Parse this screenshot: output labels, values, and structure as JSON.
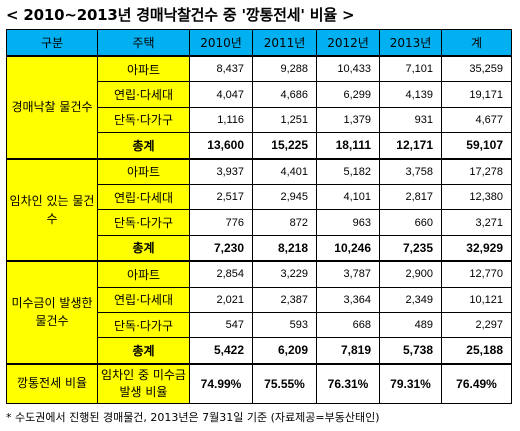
{
  "title": "< 2010~2013년 경매낙찰건수 중 '깡통전세' 비율 >",
  "headers": [
    "구분",
    "주택",
    "2010년",
    "2011년",
    "2012년",
    "2013년",
    "계"
  ],
  "sections": [
    {
      "label": "경매낙찰 물건수",
      "rows": [
        {
          "type": "아파트",
          "values": [
            "8,437",
            "9,288",
            "10,433",
            "7,101",
            "35,259"
          ]
        },
        {
          "type": "연립·다세대",
          "values": [
            "4,047",
            "4,686",
            "6,299",
            "4,139",
            "19,171"
          ]
        },
        {
          "type": "단독·다가구",
          "values": [
            "1,116",
            "1,251",
            "1,379",
            "931",
            "4,677"
          ]
        },
        {
          "type": "총계",
          "values": [
            "13,600",
            "15,225",
            "18,111",
            "12,171",
            "59,107"
          ]
        }
      ]
    },
    {
      "label": "임차인 있는 물건수",
      "rows": [
        {
          "type": "아파트",
          "values": [
            "3,937",
            "4,401",
            "5,182",
            "3,758",
            "17,278"
          ]
        },
        {
          "type": "연립·다세대",
          "values": [
            "2,517",
            "2,945",
            "4,101",
            "2,817",
            "12,380"
          ]
        },
        {
          "type": "단독·다가구",
          "values": [
            "776",
            "872",
            "963",
            "660",
            "3,271"
          ]
        },
        {
          "type": "총계",
          "values": [
            "7,230",
            "8,218",
            "10,246",
            "7,235",
            "32,929"
          ]
        }
      ]
    },
    {
      "label": "미수금이 발생한 물건수",
      "rows": [
        {
          "type": "아파트",
          "values": [
            "2,854",
            "3,229",
            "3,787",
            "2,900",
            "12,770"
          ]
        },
        {
          "type": "연립·다세대",
          "values": [
            "2,021",
            "2,387",
            "3,364",
            "2,349",
            "10,121"
          ]
        },
        {
          "type": "단독·다가구",
          "values": [
            "547",
            "593",
            "668",
            "489",
            "2,297"
          ]
        },
        {
          "type": "총계",
          "values": [
            "5,422",
            "6,209",
            "7,819",
            "5,738",
            "25,188"
          ]
        }
      ]
    }
  ],
  "ratio": {
    "label": "깡통전세 비율",
    "type": "임차인 중 미수금 발생 비율",
    "values": [
      "74.99%",
      "75.55%",
      "76.31%",
      "79.31%",
      "76.49%"
    ]
  },
  "footnote": "* 수도권에서 진행된 경매물건, 2013년은 7월31일 기준    (자료제공=부동산태인)",
  "colors": {
    "header_bg": "#00b0f0",
    "label_bg": "#ffff00"
  }
}
